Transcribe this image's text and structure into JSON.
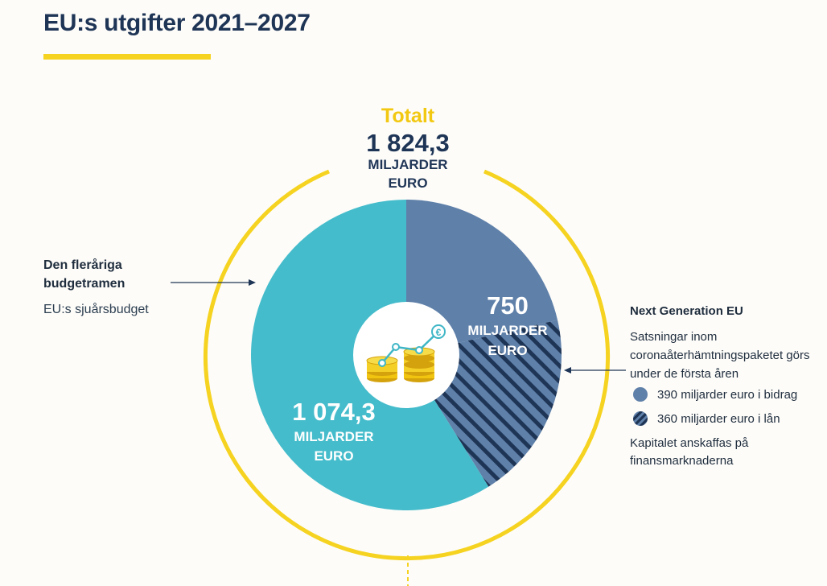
{
  "page": {
    "title": "EU:s utgifter 2021–2027"
  },
  "colors": {
    "accent_yellow": "#f5d320",
    "mff_teal": "#45bccb",
    "ngeu_blue": "#5f80a9",
    "dark_navy": "#1f3556",
    "coin_gold": "#f1c40f",
    "line_teal": "#3fb6c6"
  },
  "total": {
    "label": "Totalt",
    "value": "1 824,3",
    "unit_line1": "MILJARDER",
    "unit_line2": "EURO"
  },
  "mff": {
    "title": "Den fleråriga budgetramen",
    "subtitle": "EU:s sjuårsbudget",
    "value": "1 074,3",
    "unit_line1": "MILJARDER",
    "unit_line2": "EURO"
  },
  "ngeu": {
    "title": "Next Generation EU",
    "description": "Satsningar inom coronaåterhämtningspaketet görs under de första åren",
    "value": "750",
    "unit_line1": "MILJARDER",
    "unit_line2": "EURO",
    "legend": [
      {
        "label": "390 miljarder euro i bidrag",
        "style": "solid"
      },
      {
        "label": "360 miljarder euro i lån",
        "style": "hatched"
      }
    ],
    "footnote": "Kapitalet anskaffas på finansmarknaderna"
  },
  "center_icon": "coins-growth-euro-icon",
  "chart_data": {
    "type": "pie",
    "title": "EU:s utgifter 2021–2027",
    "total": 1824.3,
    "unit": "miljarder euro",
    "slices": [
      {
        "name": "Den fleråriga budgetramen",
        "value": 1074.3,
        "color": "#45bccb",
        "pattern": "solid"
      },
      {
        "name": "Next Generation EU – bidrag",
        "value": 390,
        "color": "#5f80a9",
        "pattern": "solid"
      },
      {
        "name": "Next Generation EU – lån",
        "value": 360,
        "color": "#5f80a9",
        "pattern": "hatched"
      }
    ]
  }
}
